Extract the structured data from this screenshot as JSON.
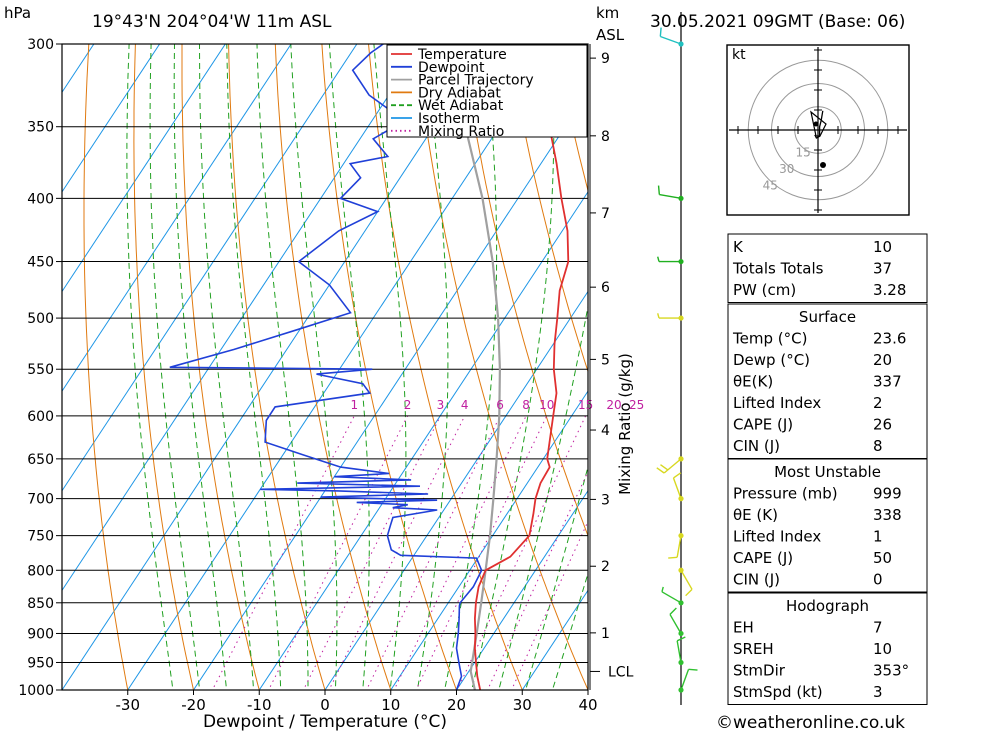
{
  "header": {
    "hpa_label": "hPa",
    "location": "19°43'N  204°04'W  11m  ASL",
    "km_label": "km",
    "asl_label": "ASL",
    "datetime": "30.05.2021  09GMT  (Base: 06)"
  },
  "footer": {
    "credit": "©weatheronline.co.uk"
  },
  "hodograph": {
    "unit_label": "kt",
    "ring_labels": [
      "15",
      "30",
      "45"
    ]
  },
  "legend": [
    {
      "label": "Temperature",
      "color": "#e03030",
      "style": "solid"
    },
    {
      "label": "Dewpoint",
      "color": "#2040d8",
      "style": "solid"
    },
    {
      "label": "Parcel Trajectory",
      "color": "#a0a0a0",
      "style": "solid"
    },
    {
      "label": "Dry Adiabat",
      "color": "#e07a10",
      "style": "solid"
    },
    {
      "label": "Wet Adiabat",
      "color": "#20a020",
      "style": "dash"
    },
    {
      "label": "Isotherm",
      "color": "#1e96e6",
      "style": "solid"
    },
    {
      "label": "Mixing Ratio",
      "color": "#c020a0",
      "style": "dot"
    }
  ],
  "indices_top": [
    {
      "label": "K",
      "value": "10"
    },
    {
      "label": "Totals Totals",
      "value": "37"
    },
    {
      "label": "PW (cm)",
      "value": "3.28"
    }
  ],
  "surface": {
    "title": "Surface",
    "rows": [
      {
        "label": "Temp (°C)",
        "value": "23.6"
      },
      {
        "label": "Dewp (°C)",
        "value": "20"
      },
      {
        "label": "θE(K)",
        "value": "337"
      },
      {
        "label": "Lifted Index",
        "value": "2"
      },
      {
        "label": "CAPE (J)",
        "value": "26"
      },
      {
        "label": "CIN (J)",
        "value": "8"
      }
    ]
  },
  "most_unstable": {
    "title": "Most Unstable",
    "rows": [
      {
        "label": "Pressure (mb)",
        "value": "999"
      },
      {
        "label": "θE (K)",
        "value": "338"
      },
      {
        "label": "Lifted Index",
        "value": "1"
      },
      {
        "label": "CAPE (J)",
        "value": "50"
      },
      {
        "label": "CIN (J)",
        "value": "0"
      }
    ]
  },
  "hodo_table": {
    "title": "Hodograph",
    "rows": [
      {
        "label": "EH",
        "value": "7"
      },
      {
        "label": "SREH",
        "value": "10"
      },
      {
        "label": "StmDir",
        "value": "353°"
      },
      {
        "label": "StmSpd (kt)",
        "value": "3"
      }
    ]
  },
  "chart_data": {
    "type": "skew-t log-p",
    "xlabel": "Dewpoint / Temperature (°C)",
    "ylabel": "hPa",
    "mixing_ratio_axis_label": "Mixing Ratio (g/kg)",
    "pressure_ticks": [
      300,
      350,
      400,
      450,
      500,
      550,
      600,
      650,
      700,
      750,
      800,
      850,
      900,
      950,
      1000
    ],
    "temperature_ticks": [
      -30,
      -20,
      -10,
      0,
      10,
      20,
      30,
      40
    ],
    "xlim": [
      -40,
      40
    ],
    "plim": [
      1000,
      300
    ],
    "km_ticks": [
      {
        "label": "1",
        "p": 899
      },
      {
        "label": "2",
        "p": 794
      },
      {
        "label": "3",
        "p": 701
      },
      {
        "label": "4",
        "p": 616
      },
      {
        "label": "5",
        "p": 540
      },
      {
        "label": "6",
        "p": 472
      },
      {
        "label": "7",
        "p": 411
      },
      {
        "label": "8",
        "p": 356
      },
      {
        "label": "9",
        "p": 308
      }
    ],
    "lcl": {
      "label": "LCL",
      "p": 966
    },
    "mixing_ratio_labels": [
      {
        "label": "1",
        "value": 1
      },
      {
        "label": "2",
        "value": 2
      },
      {
        "label": "3",
        "value": 3
      },
      {
        "label": "4",
        "value": 4
      },
      {
        "label": "6",
        "value": 6
      },
      {
        "label": "8",
        "value": 8
      },
      {
        "label": "10",
        "value": 10
      },
      {
        "label": "15",
        "value": 15
      },
      {
        "label": "20",
        "value": 20
      },
      {
        "label": "25",
        "value": 25
      }
    ],
    "temperature_profile": [
      [
        1000,
        23.6
      ],
      [
        975,
        21.8
      ],
      [
        950,
        20.2
      ],
      [
        925,
        18.6
      ],
      [
        900,
        17.2
      ],
      [
        875,
        15.6
      ],
      [
        850,
        14.2
      ],
      [
        825,
        13.0
      ],
      [
        800,
        12.4
      ],
      [
        780,
        14.8
      ],
      [
        750,
        15.6
      ],
      [
        720,
        14.0
      ],
      [
        700,
        12.8
      ],
      [
        680,
        12.0
      ],
      [
        660,
        11.8
      ],
      [
        650,
        10.6
      ],
      [
        600,
        7.2
      ],
      [
        575,
        5.4
      ],
      [
        550,
        2.6
      ],
      [
        525,
        0.2
      ],
      [
        500,
        -2.0
      ],
      [
        475,
        -4.4
      ],
      [
        450,
        -6.0
      ],
      [
        425,
        -9.2
      ],
      [
        400,
        -13.4
      ],
      [
        375,
        -17.6
      ],
      [
        350,
        -22.4
      ],
      [
        325,
        -27.6
      ],
      [
        300,
        -32.0
      ]
    ],
    "dewpoint_profile": [
      [
        1000,
        20.0
      ],
      [
        975,
        19.4
      ],
      [
        950,
        17.6
      ],
      [
        925,
        15.8
      ],
      [
        900,
        14.6
      ],
      [
        875,
        13.2
      ],
      [
        855,
        12.0
      ],
      [
        850,
        11.8
      ],
      [
        825,
        12.2
      ],
      [
        800,
        11.8
      ],
      [
        782,
        9.8
      ],
      [
        778,
        -2.0
      ],
      [
        770,
        -4.0
      ],
      [
        750,
        -6.0
      ],
      [
        735,
        -6.6
      ],
      [
        725,
        -7.0
      ],
      [
        715,
        -1.0
      ],
      [
        712,
        -8.0
      ],
      [
        708,
        -6.0
      ],
      [
        705,
        -14.0
      ],
      [
        702,
        -2.0
      ],
      [
        698,
        -20.0
      ],
      [
        694,
        -4.0
      ],
      [
        690,
        -18.0
      ],
      [
        688,
        -30.0
      ],
      [
        684,
        -6.0
      ],
      [
        680,
        -25.0
      ],
      [
        676,
        -8.0
      ],
      [
        672,
        -20.0
      ],
      [
        668,
        -12.0
      ],
      [
        660,
        -20.0
      ],
      [
        645,
        -27.0
      ],
      [
        630,
        -34.0
      ],
      [
        605,
        -36.0
      ],
      [
        590,
        -36.0
      ],
      [
        575,
        -23.0
      ],
      [
        565,
        -25.0
      ],
      [
        555,
        -33.0
      ],
      [
        550,
        -25.0
      ],
      [
        548,
        -56.0
      ],
      [
        530,
        -48.0
      ],
      [
        510,
        -40.0
      ],
      [
        495,
        -34.0
      ],
      [
        470,
        -40.0
      ],
      [
        450,
        -47.0
      ],
      [
        425,
        -44.0
      ],
      [
        410,
        -40.0
      ],
      [
        400,
        -47.0
      ],
      [
        385,
        -46.0
      ],
      [
        375,
        -49.0
      ],
      [
        370,
        -44.0
      ],
      [
        358,
        -48.0
      ],
      [
        350,
        -46.0
      ],
      [
        340,
        -48.0
      ],
      [
        330,
        -53.0
      ],
      [
        315,
        -58.0
      ],
      [
        305,
        -57.0
      ],
      [
        300,
        -56.0
      ]
    ],
    "parcel_profile": [
      [
        1000,
        22.8
      ],
      [
        966,
        20.3
      ],
      [
        900,
        17.4
      ],
      [
        850,
        15.0
      ],
      [
        800,
        12.4
      ],
      [
        750,
        9.6
      ],
      [
        700,
        6.4
      ],
      [
        650,
        2.9
      ],
      [
        600,
        -1.0
      ],
      [
        550,
        -5.6
      ],
      [
        500,
        -11.0
      ],
      [
        450,
        -17.5
      ],
      [
        400,
        -25.4
      ],
      [
        350,
        -35.2
      ],
      [
        300,
        -46.5
      ]
    ],
    "wind_barbs": [
      {
        "p": 1000,
        "dir": 20,
        "speed_kt": 5
      },
      {
        "p": 950,
        "dir": 350,
        "speed_kt": 5
      },
      {
        "p": 900,
        "dir": 330,
        "speed_kt": 5
      },
      {
        "p": 850,
        "dir": 300,
        "speed_kt": 3
      },
      {
        "p": 800,
        "dir": 150,
        "speed_kt": 5
      },
      {
        "p": 750,
        "dir": 190,
        "speed_kt": 5
      },
      {
        "p": 700,
        "dir": 340,
        "speed_kt": 5
      },
      {
        "p": 650,
        "dir": 230,
        "speed_kt": 10
      },
      {
        "p": 500,
        "dir": 270,
        "speed_kt": 2
      },
      {
        "p": 450,
        "dir": 270,
        "speed_kt": 2
      },
      {
        "p": 400,
        "dir": 280,
        "speed_kt": 5
      },
      {
        "p": 300,
        "dir": 290,
        "speed_kt": 5
      }
    ],
    "hodograph_trace": [
      [
        -2,
        3
      ],
      [
        -1,
        5
      ],
      [
        1,
        4
      ],
      [
        1,
        -2
      ],
      [
        2,
        -6
      ],
      [
        3,
        -12
      ]
    ]
  }
}
